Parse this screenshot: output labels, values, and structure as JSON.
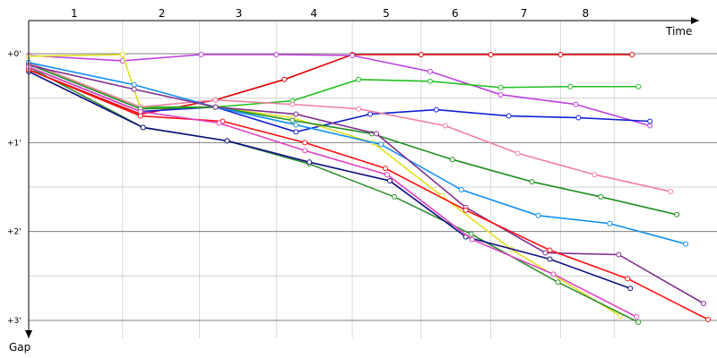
{
  "chart_data": {
    "type": "line",
    "x_label": "Time",
    "y_label": "Gap",
    "xlim": [
      0,
      7.7
    ],
    "ylim": [
      0,
      3.0
    ],
    "xticks": [
      {
        "value": 0.51,
        "label": "1"
      },
      {
        "value": 1.49,
        "label": "2"
      },
      {
        "value": 2.35,
        "label": "3"
      },
      {
        "value": 3.19,
        "label": "4"
      },
      {
        "value": 4.0,
        "label": "5"
      },
      {
        "value": 4.77,
        "label": "6"
      },
      {
        "value": 5.54,
        "label": "7"
      },
      {
        "value": 6.23,
        "label": "8"
      }
    ],
    "lap_lines": [
      1.05,
      1.91,
      2.77,
      3.62,
      4.39,
      5.17,
      5.95,
      6.55
    ],
    "yticks": [
      {
        "value": 0,
        "label": "+0'"
      },
      {
        "value": 1,
        "label": "+1'"
      },
      {
        "value": 2,
        "label": "+2'"
      },
      {
        "value": 3,
        "label": "+3'"
      }
    ],
    "y_minor_ticks": [
      0.5,
      1.5,
      2.5
    ],
    "grid": true,
    "series": [
      {
        "color": "#e00000",
        "x": [
          0,
          1.25,
          2.09,
          2.86,
          3.62,
          4.39,
          5.17,
          5.95,
          6.75
        ],
        "values": [
          0.18,
          0.68,
          0.52,
          0.29,
          0.01,
          0.01,
          0.01,
          0.01,
          0.01
        ]
      },
      {
        "color": "#c040e0",
        "x": [
          0,
          1.05,
          1.93,
          2.77,
          3.62,
          4.49,
          5.28,
          6.12,
          6.95
        ],
        "values": [
          0.02,
          0.08,
          0.01,
          0.01,
          0.02,
          0.2,
          0.46,
          0.57,
          0.81
        ]
      },
      {
        "color": "#20c020",
        "x": [
          0,
          1.25,
          2.09,
          2.95,
          3.69,
          4.49,
          5.28,
          6.06,
          6.82
        ],
        "values": [
          0.1,
          0.6,
          0.6,
          0.53,
          0.29,
          0.31,
          0.38,
          0.37,
          0.37
        ]
      },
      {
        "color": "#1020d0",
        "x": [
          0,
          1.25,
          2.09,
          2.99,
          3.82,
          4.56,
          5.37,
          6.15,
          6.95
        ],
        "values": [
          0.15,
          0.65,
          0.6,
          0.88,
          0.68,
          0.63,
          0.7,
          0.72,
          0.76
        ]
      },
      {
        "color": "#e0e020",
        "x": [
          0,
          1.05,
          1.25,
          2.09,
          2.95,
          3.85,
          4.62,
          5.4,
          6.62
        ],
        "values": [
          0.03,
          0.01,
          0.62,
          0.6,
          0.72,
          1.0,
          1.6,
          2.2,
          2.95
        ]
      },
      {
        "color": "#f080a0",
        "x": [
          0,
          1.25,
          2.09,
          2.95,
          3.69,
          4.66,
          5.47,
          6.33,
          7.18
        ],
        "values": [
          0.1,
          0.6,
          0.52,
          0.57,
          0.62,
          0.81,
          1.12,
          1.36,
          1.55
        ]
      },
      {
        "color": "#309030",
        "x": [
          0,
          1.28,
          2.22,
          3.14,
          4.09,
          4.95,
          5.92,
          6.82
        ],
        "values": [
          0.15,
          0.83,
          0.98,
          1.24,
          1.61,
          2.03,
          2.57,
          3.02
        ]
      },
      {
        "color": "#209020",
        "x": [
          0,
          1.25,
          2.09,
          2.95,
          3.84,
          4.74,
          5.63,
          6.4,
          7.25
        ],
        "values": [
          0.12,
          0.62,
          0.6,
          0.75,
          0.9,
          1.19,
          1.44,
          1.61,
          1.81
        ]
      },
      {
        "color": "#1090f0",
        "x": [
          0,
          1.18,
          2.09,
          2.99,
          3.94,
          4.84,
          5.7,
          6.5,
          7.35
        ],
        "values": [
          0.1,
          0.35,
          0.6,
          0.8,
          1.02,
          1.53,
          1.82,
          1.91,
          2.14
        ]
      },
      {
        "color": "#101080",
        "x": [
          0,
          1.28,
          2.22,
          3.14,
          4.04,
          4.89,
          5.83,
          6.73
        ],
        "values": [
          0.2,
          0.83,
          0.98,
          1.22,
          1.43,
          2.06,
          2.31,
          2.64
        ]
      },
      {
        "color": "#803090",
        "x": [
          0,
          1.18,
          2.09,
          2.99,
          3.89,
          4.89,
          5.78,
          6.6,
          7.55
        ],
        "values": [
          0.13,
          0.4,
          0.6,
          0.68,
          0.9,
          1.73,
          2.24,
          2.26,
          2.81
        ]
      },
      {
        "color": "#ff1010",
        "x": [
          0,
          1.25,
          2.17,
          3.09,
          3.99,
          4.89,
          5.83,
          6.7,
          7.6
        ],
        "values": [
          0.18,
          0.7,
          0.76,
          1.0,
          1.29,
          1.76,
          2.21,
          2.53,
          2.99
        ]
      },
      {
        "color": "#e040c0",
        "x": [
          0,
          1.25,
          2.13,
          3.09,
          4.01,
          4.96,
          5.87,
          6.8
        ],
        "values": [
          0.15,
          0.65,
          0.78,
          1.09,
          1.36,
          2.09,
          2.48,
          2.96
        ]
      }
    ]
  }
}
